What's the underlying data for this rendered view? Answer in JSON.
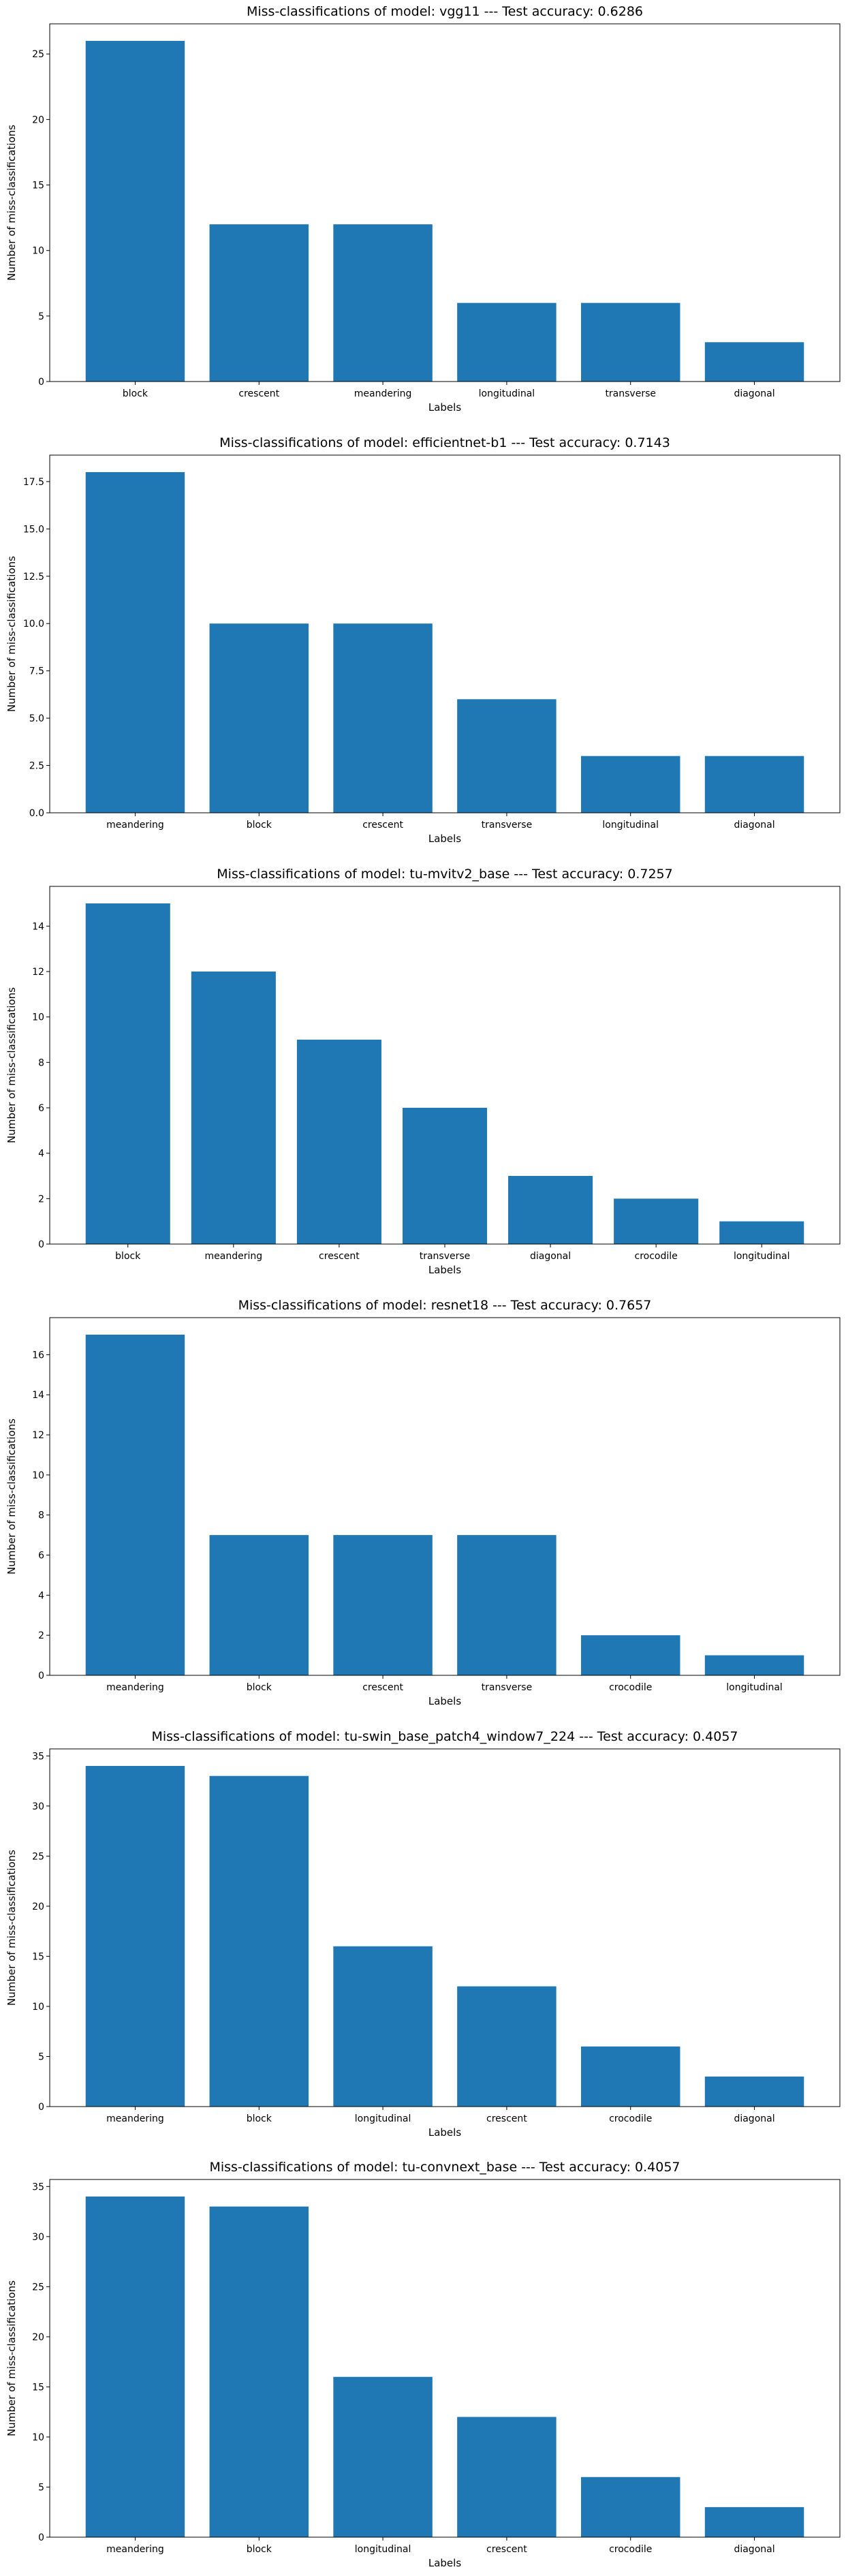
{
  "style": {
    "bar_color": "#1f77b4",
    "axis_color": "#000000",
    "background": "#ffffff"
  },
  "chart_data": [
    {
      "type": "bar",
      "title": "Miss-classifications of model: vgg11 --- Test accuracy: 0.6286",
      "xlabel": "Labels",
      "ylabel": "Number of miss-classifications",
      "categories": [
        "block",
        "crescent",
        "meandering",
        "longitudinal",
        "transverse",
        "diagonal"
      ],
      "values": [
        26,
        12,
        12,
        6,
        6,
        3
      ],
      "ylim": [
        0,
        27.3
      ],
      "yticks": [
        0,
        5,
        10,
        15,
        20,
        25
      ],
      "ytick_labels": [
        "0",
        "5",
        "10",
        "15",
        "20",
        "25"
      ],
      "grid": false
    },
    {
      "type": "bar",
      "title": "Miss-classifications of model: efficientnet-b1 --- Test accuracy: 0.7143",
      "xlabel": "Labels",
      "ylabel": "Number of miss-classifications",
      "categories": [
        "meandering",
        "block",
        "crescent",
        "transverse",
        "longitudinal",
        "diagonal"
      ],
      "values": [
        18,
        10,
        10,
        6,
        3,
        3
      ],
      "ylim": [
        0,
        18.9
      ],
      "yticks": [
        0,
        2.5,
        5,
        7.5,
        10,
        12.5,
        15,
        17.5
      ],
      "ytick_labels": [
        "0.0",
        "2.5",
        "5.0",
        "7.5",
        "10.0",
        "12.5",
        "15.0",
        "17.5"
      ],
      "grid": false
    },
    {
      "type": "bar",
      "title": "Miss-classifications of model: tu-mvitv2_base --- Test accuracy: 0.7257",
      "xlabel": "Labels",
      "ylabel": "Number of miss-classifications",
      "categories": [
        "block",
        "meandering",
        "crescent",
        "transverse",
        "diagonal",
        "crocodile",
        "longitudinal"
      ],
      "values": [
        15,
        12,
        9,
        6,
        3,
        2,
        1
      ],
      "ylim": [
        0,
        15.75
      ],
      "yticks": [
        0,
        2,
        4,
        6,
        8,
        10,
        12,
        14
      ],
      "ytick_labels": [
        "0",
        "2",
        "4",
        "6",
        "8",
        "10",
        "12",
        "14"
      ],
      "grid": false
    },
    {
      "type": "bar",
      "title": "Miss-classifications of model: resnet18 --- Test accuracy: 0.7657",
      "xlabel": "Labels",
      "ylabel": "Number of miss-classifications",
      "categories": [
        "meandering",
        "block",
        "crescent",
        "transverse",
        "crocodile",
        "longitudinal"
      ],
      "values": [
        17,
        7,
        7,
        7,
        2,
        1
      ],
      "ylim": [
        0,
        17.85
      ],
      "yticks": [
        0,
        2,
        4,
        6,
        8,
        10,
        12,
        14,
        16
      ],
      "ytick_labels": [
        "0",
        "2",
        "4",
        "6",
        "8",
        "10",
        "12",
        "14",
        "16"
      ],
      "grid": false
    },
    {
      "type": "bar",
      "title": "Miss-classifications of model: tu-swin_base_patch4_window7_224 --- Test accuracy: 0.4057",
      "xlabel": "Labels",
      "ylabel": "Number of miss-classifications",
      "categories": [
        "meandering",
        "block",
        "longitudinal",
        "crescent",
        "crocodile",
        "diagonal"
      ],
      "values": [
        34,
        33,
        16,
        12,
        6,
        3
      ],
      "ylim": [
        0,
        35.7
      ],
      "yticks": [
        0,
        5,
        10,
        15,
        20,
        25,
        30,
        35
      ],
      "ytick_labels": [
        "0",
        "5",
        "10",
        "15",
        "20",
        "25",
        "30",
        "35"
      ],
      "grid": false
    },
    {
      "type": "bar",
      "title": "Miss-classifications of model: tu-convnext_base --- Test accuracy: 0.4057",
      "xlabel": "Labels",
      "ylabel": "Number of miss-classifications",
      "categories": [
        "meandering",
        "block",
        "longitudinal",
        "crescent",
        "crocodile",
        "diagonal"
      ],
      "values": [
        34,
        33,
        16,
        12,
        6,
        3
      ],
      "ylim": [
        0,
        35.7
      ],
      "yticks": [
        0,
        5,
        10,
        15,
        20,
        25,
        30,
        35
      ],
      "ytick_labels": [
        "0",
        "5",
        "10",
        "15",
        "20",
        "25",
        "30",
        "35"
      ],
      "grid": false
    }
  ]
}
